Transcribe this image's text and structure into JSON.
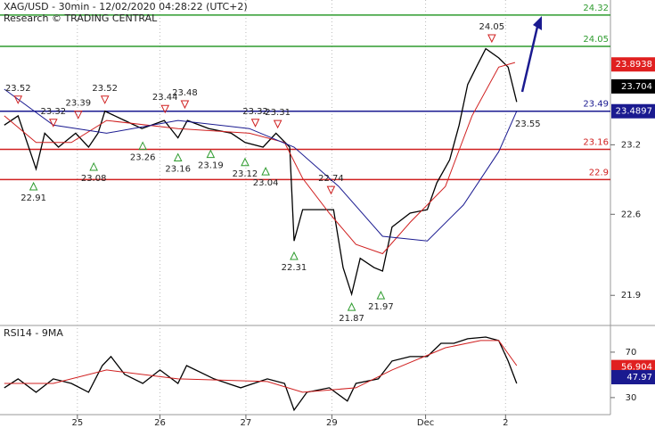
{
  "chart_data": [
    {
      "type": "line",
      "title": "XAG/USD - 30min - 12/02/2020 04:28:22 (UTC+2)",
      "subtitle": "Research © TRADING CENTRAL",
      "xlim": [
        0.1,
        7.2
      ],
      "xticks": [
        {
          "value": 1,
          "label": "25"
        },
        {
          "value": 1.96,
          "label": "26"
        },
        {
          "value": 2.96,
          "label": "27"
        },
        {
          "value": 3.96,
          "label": "29"
        },
        {
          "value": 5.05,
          "label": "Dec"
        },
        {
          "value": 5.98,
          "label": "2"
        }
      ],
      "ylim": [
        21.64,
        24.45
      ],
      "yticks": [
        23.2,
        22.6,
        21.9
      ],
      "series": [
        {
          "color": "#000000",
          "x": [
            0.15,
            0.31,
            0.52,
            0.62,
            0.78,
            0.98,
            1.13,
            1.24,
            1.32,
            1.55,
            1.75,
            2.01,
            2.17,
            2.28,
            2.53,
            2.79,
            2.95,
            3.16,
            3.31,
            3.47,
            3.52,
            3.62,
            3.83,
            3.98,
            4.09,
            4.19,
            4.29,
            4.45,
            4.55,
            4.66,
            4.87,
            5.07,
            5.18,
            5.33,
            5.44,
            5.54,
            5.64,
            5.75,
            5.9,
            6.01,
            6.11
          ],
          "values": [
            23.37,
            23.45,
            22.99,
            23.3,
            23.18,
            23.3,
            23.18,
            23.3,
            23.49,
            23.41,
            23.34,
            23.41,
            23.26,
            23.41,
            23.34,
            23.3,
            23.22,
            23.18,
            23.3,
            23.18,
            22.37,
            22.64,
            22.64,
            22.64,
            22.14,
            21.91,
            22.22,
            22.14,
            22.11,
            22.49,
            22.61,
            22.64,
            22.87,
            23.07,
            23.37,
            23.72,
            23.87,
            24.03,
            23.95,
            23.87,
            23.57
          ]
        },
        {
          "color": "#d02020",
          "x": [
            0.15,
            0.52,
            0.93,
            1.34,
            2.17,
            3.0,
            3.41,
            3.62,
            3.93,
            4.24,
            4.55,
            4.87,
            5.28,
            5.59,
            5.9,
            6.09
          ],
          "values": [
            23.45,
            23.22,
            23.22,
            23.41,
            23.34,
            23.3,
            23.22,
            22.91,
            22.61,
            22.34,
            22.26,
            22.53,
            22.84,
            23.45,
            23.87,
            23.91
          ]
        },
        {
          "color": "#1a1a90",
          "x": [
            0.15,
            0.72,
            1.34,
            2.17,
            3.0,
            3.52,
            4.04,
            4.55,
            5.07,
            5.49,
            5.9,
            6.11
          ],
          "values": [
            23.68,
            23.37,
            23.3,
            23.41,
            23.34,
            23.18,
            22.84,
            22.41,
            22.37,
            22.68,
            23.14,
            23.49
          ]
        }
      ],
      "levels": [
        {
          "value": 24.32,
          "color": "#2e9b2e"
        },
        {
          "value": 24.05,
          "color": "#2e9b2e"
        },
        {
          "value": 23.49,
          "color": "#1a1a90"
        },
        {
          "value": 23.16,
          "color": "#d02020"
        },
        {
          "value": 22.9,
          "color": "#d02020"
        }
      ],
      "highs": {
        "x": [
          0.31,
          0.72,
          1.01,
          1.32,
          2.02,
          2.25,
          3.07,
          3.33,
          3.95,
          5.82
        ],
        "values": [
          23.52,
          23.32,
          23.39,
          23.52,
          23.44,
          23.48,
          23.32,
          23.31,
          22.74,
          24.05
        ],
        "color": "#d02020"
      },
      "lows": {
        "x": [
          0.49,
          1.19,
          1.76,
          2.17,
          2.55,
          2.95,
          3.19,
          3.52,
          4.19,
          4.53
        ],
        "values": [
          22.91,
          23.08,
          23.26,
          23.16,
          23.19,
          23.12,
          23.04,
          22.31,
          21.87,
          21.97
        ],
        "color": "#2e9b2e"
      },
      "price_tags": [
        {
          "value": 23.8938,
          "color": "#e02020"
        },
        {
          "value": 23.704,
          "color": "#000000"
        },
        {
          "value": 23.4897,
          "color": "#1a1a90"
        }
      ],
      "annotation": "23.55"
    },
    {
      "type": "line",
      "title": "RSI14 - 9MA",
      "ylim": [
        15,
        93.5
      ],
      "yticks": [
        70,
        30
      ],
      "series": [
        {
          "color": "#000000",
          "x": [
            0.15,
            0.31,
            0.52,
            0.72,
            0.93,
            1.13,
            1.29,
            1.39,
            1.55,
            1.76,
            1.96,
            2.17,
            2.27,
            2.59,
            2.9,
            3.21,
            3.41,
            3.52,
            3.67,
            3.93,
            4.14,
            4.24,
            4.5,
            4.66,
            4.87,
            5.07,
            5.23,
            5.38,
            5.54,
            5.75,
            5.9,
            6.01,
            6.11
          ],
          "values": [
            38.6,
            46.5,
            34.7,
            46.5,
            42.5,
            34.7,
            58.2,
            66.1,
            50.4,
            42.5,
            54.3,
            42.5,
            58.2,
            46.5,
            38.6,
            46.5,
            42.5,
            19.0,
            34.7,
            38.6,
            26.9,
            42.5,
            46.5,
            62.2,
            66.1,
            66.1,
            77.8,
            77.8,
            81.8,
            83.3,
            80.2,
            62.2,
            42.5
          ]
        },
        {
          "color": "#d02020",
          "x": [
            0.15,
            0.72,
            1.34,
            2.17,
            3.21,
            3.62,
            4.24,
            4.66,
            5.28,
            5.69,
            5.9,
            6.11
          ],
          "values": [
            42.5,
            42.5,
            54.3,
            46.5,
            44.1,
            34.7,
            38.6,
            54.3,
            73.9,
            80.2,
            80.2,
            58.2
          ]
        }
      ],
      "price_tags": [
        {
          "value": 56.904,
          "color": "#e02020"
        },
        {
          "value": 47.97,
          "color": "#1a1a90"
        }
      ]
    }
  ]
}
